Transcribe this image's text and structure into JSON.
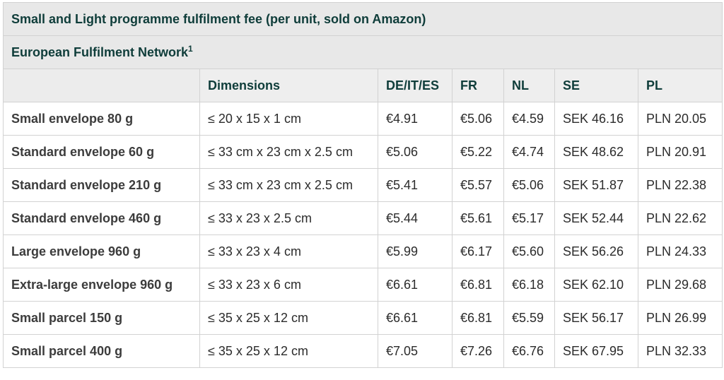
{
  "table": {
    "title": "Small and Light programme fulfilment fee (per unit, sold on Amazon)",
    "subtitle": "European Fulfilment Network",
    "subtitle_sup": "1",
    "headers": [
      "",
      "Dimensions",
      "DE/IT/ES",
      "FR",
      "NL",
      "SE",
      "PL"
    ],
    "rows": [
      [
        "Small envelope 80 g",
        "≤ 20 x 15 x 1 cm",
        "€4.91",
        "€5.06",
        "€4.59",
        "SEK 46.16",
        "PLN 20.05"
      ],
      [
        "Standard envelope 60 g",
        "≤ 33 cm x 23 cm x 2.5 cm",
        "€5.06",
        "€5.22",
        "€4.74",
        "SEK 48.62",
        "PLN 20.91"
      ],
      [
        "Standard envelope 210 g",
        "≤ 33 cm x 23 cm x 2.5 cm",
        "€5.41",
        "€5.57",
        "€5.06",
        "SEK 51.87",
        "PLN 22.38"
      ],
      [
        "Standard envelope 460 g",
        "≤ 33 x 23 x 2.5 cm",
        "€5.44",
        "€5.61",
        "€5.17",
        "SEK 52.44",
        "PLN 22.62"
      ],
      [
        "Large envelope 960 g",
        "≤ 33 x 23 x 4 cm",
        "€5.99",
        "€6.17",
        "€5.60",
        "SEK 56.26",
        "PLN 24.33"
      ],
      [
        "Extra-large envelope 960 g",
        "≤ 33 x 23 x 6 cm",
        "€6.61",
        "€6.81",
        "€6.18",
        "SEK 62.10",
        "PLN 29.68"
      ],
      [
        "Small parcel 150 g",
        "≤ 35 x 25 x 12 cm",
        "€6.61",
        "€6.81",
        "€5.59",
        "SEK 56.17",
        "PLN 26.99"
      ],
      [
        "Small parcel 400 g",
        "≤ 35 x 25 x 12 cm",
        "€7.05",
        "€7.26",
        "€6.76",
        "SEK 67.95",
        "PLN 32.33"
      ]
    ]
  }
}
